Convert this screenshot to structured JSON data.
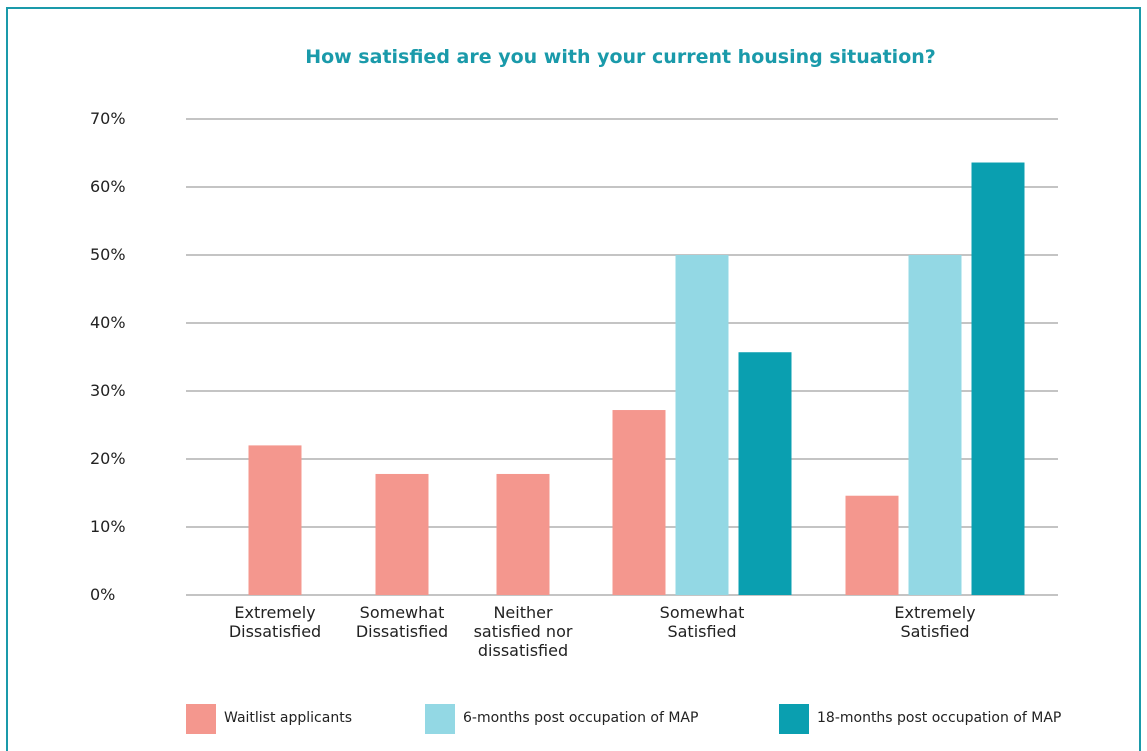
{
  "chart_data": {
    "type": "bar",
    "title": "How satisfied are you with your current housing situation?",
    "categories": [
      "Extremely Dissatisfied",
      "Somewhat Dissatisfied",
      "Neither satisfied nor dissatisfied",
      "Somewhat Satisfied",
      "Extremely Satisfied"
    ],
    "series": [
      {
        "name": "Waitlist applicants",
        "color": "#f4978e",
        "values": [
          22,
          17.8,
          17.8,
          27.2,
          14.6
        ]
      },
      {
        "name": "6-months post occupation of MAP",
        "color": "#93d8e4",
        "values": [
          null,
          null,
          null,
          50,
          50
        ]
      },
      {
        "name": "18-months post occupation of MAP",
        "color": "#0a9fb0",
        "values": [
          null,
          null,
          null,
          35.7,
          63.6
        ]
      }
    ],
    "ylim": [
      0,
      70
    ],
    "yticks": [
      {
        "value": 0,
        "label": "0%"
      },
      {
        "value": 10,
        "label": "10%"
      },
      {
        "value": 20,
        "label": "20%"
      },
      {
        "value": 30,
        "label": "30%"
      },
      {
        "value": 40,
        "label": "40%"
      },
      {
        "value": 50,
        "label": "50%"
      },
      {
        "value": 60,
        "label": "60%"
      },
      {
        "value": 70,
        "label": "70%"
      }
    ],
    "grid": true,
    "legend": "bottom"
  }
}
